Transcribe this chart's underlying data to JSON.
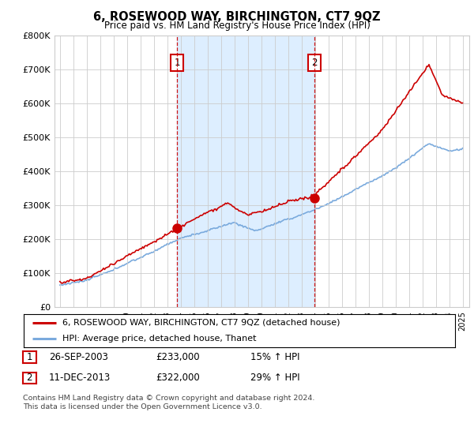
{
  "title": "6, ROSEWOOD WAY, BIRCHINGTON, CT7 9QZ",
  "subtitle": "Price paid vs. HM Land Registry's House Price Index (HPI)",
  "ylim": [
    0,
    800000
  ],
  "yticks": [
    0,
    100000,
    200000,
    300000,
    400000,
    500000,
    600000,
    700000,
    800000
  ],
  "ytick_labels": [
    "£0",
    "£100K",
    "£200K",
    "£300K",
    "£400K",
    "£500K",
    "£600K",
    "£700K",
    "£800K"
  ],
  "sale1_year": 2003.74,
  "sale1_price": 233000,
  "sale1_label": "1",
  "sale2_year": 2013.95,
  "sale2_price": 322000,
  "sale2_label": "2",
  "line_red_color": "#cc0000",
  "line_blue_color": "#7aaadd",
  "shade_color": "#ddeeff",
  "vline_color": "#cc0000",
  "grid_color": "#cccccc",
  "bg_color": "#ffffff",
  "legend1_label": "6, ROSEWOOD WAY, BIRCHINGTON, CT7 9QZ (detached house)",
  "legend2_label": "HPI: Average price, detached house, Thanet",
  "footer1": "Contains HM Land Registry data © Crown copyright and database right 2024.",
  "footer2": "This data is licensed under the Open Government Licence v3.0.",
  "table_row1": [
    "1",
    "26-SEP-2003",
    "£233,000",
    "15% ↑ HPI"
  ],
  "table_row2": [
    "2",
    "11-DEC-2013",
    "£322,000",
    "29% ↑ HPI"
  ]
}
